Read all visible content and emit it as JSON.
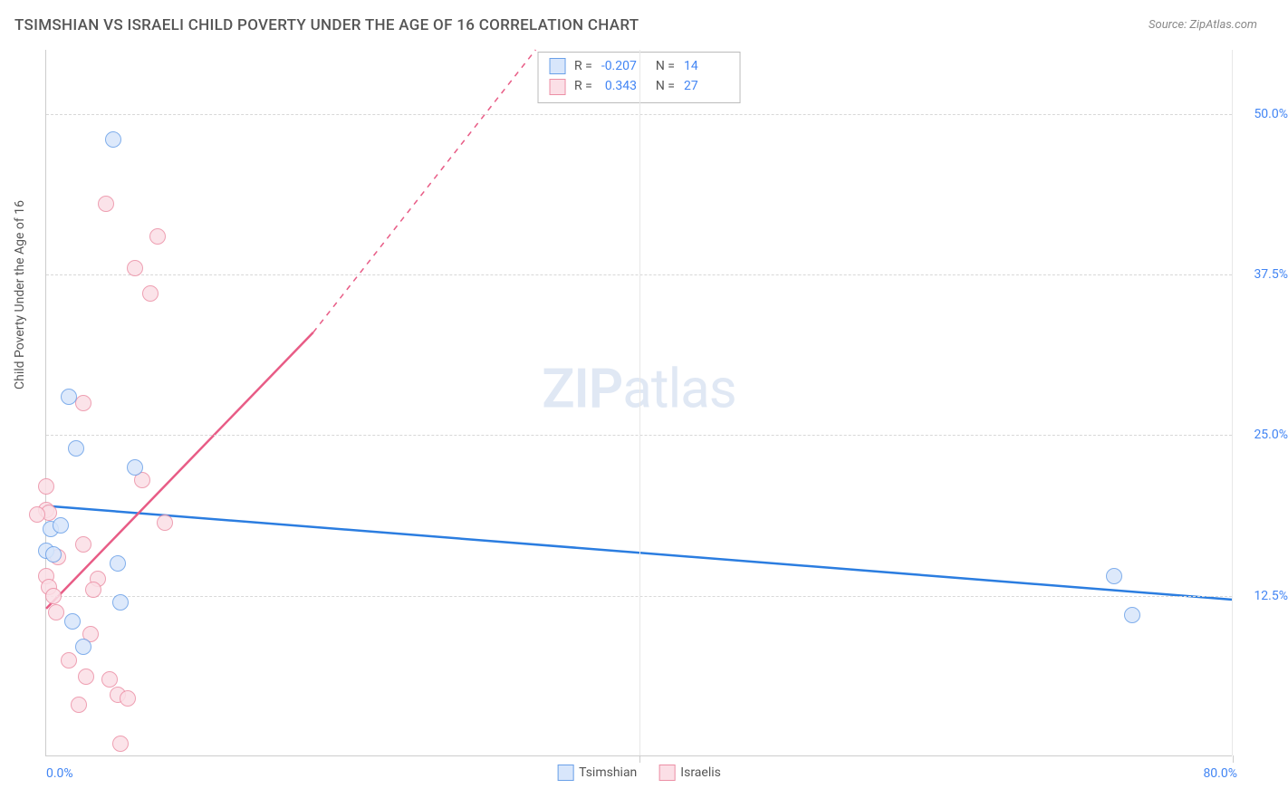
{
  "title": "TSIMSHIAN VS ISRAELI CHILD POVERTY UNDER THE AGE OF 16 CORRELATION CHART",
  "source_label": "Source: ZipAtlas.com",
  "y_axis_label": "Child Poverty Under the Age of 16",
  "watermark_a": "ZIP",
  "watermark_b": "atlas",
  "chart": {
    "type": "scatter",
    "xlim": [
      0,
      80
    ],
    "ylim": [
      0,
      55
    ],
    "x_min_label": "0.0%",
    "x_max_label": "80.0%",
    "y_ticks": [
      12.5,
      25.0,
      37.5,
      50.0
    ],
    "y_tick_labels": [
      "12.5%",
      "25.0%",
      "37.5%",
      "50.0%"
    ],
    "x_ticks": [
      40,
      80
    ],
    "grid_color": "#d8d8d8",
    "background": "#ffffff",
    "axis_color": "#cccccc",
    "tick_label_color": "#4285f4",
    "tick_label_fontsize": 14,
    "point_radius": 9,
    "point_stroke_width": 1.5,
    "series": {
      "tsimshian": {
        "label": "Tsimshian",
        "fill": "#d8e6fb",
        "stroke": "#6aa0e8",
        "line_color": "#2b7de0",
        "line_width": 2.5,
        "trendline": {
          "x1": 0,
          "y1": 19.5,
          "x2": 80,
          "y2": 12.2
        },
        "stats_R": "-0.207",
        "stats_N": "14",
        "points": [
          [
            4.5,
            48.0
          ],
          [
            1.5,
            28.0
          ],
          [
            2.0,
            24.0
          ],
          [
            0.3,
            17.7
          ],
          [
            1.0,
            18.0
          ],
          [
            6.0,
            22.5
          ],
          [
            0.0,
            16.0
          ],
          [
            0.5,
            15.7
          ],
          [
            4.8,
            15.0
          ],
          [
            5.0,
            12.0
          ],
          [
            1.8,
            10.5
          ],
          [
            2.5,
            8.5
          ],
          [
            72.0,
            14.0
          ],
          [
            73.2,
            11.0
          ]
        ]
      },
      "israelis": {
        "label": "Israelis",
        "fill": "#fbdfe6",
        "stroke": "#ec8fa5",
        "line_color": "#e85c86",
        "line_width": 2.5,
        "trendline_solid": {
          "x1": 0,
          "y1": 11.5,
          "x2": 18.0,
          "y2": 33.0
        },
        "trendline_dashed": {
          "x1": 18.0,
          "y1": 33.0,
          "x2": 33.0,
          "y2": 55.0
        },
        "stats_R": "0.343",
        "stats_N": "27",
        "points": [
          [
            4.0,
            43.0
          ],
          [
            7.5,
            40.5
          ],
          [
            6.0,
            38.0
          ],
          [
            7.0,
            36.0
          ],
          [
            2.5,
            27.5
          ],
          [
            0.0,
            21.0
          ],
          [
            6.5,
            21.5
          ],
          [
            0.0,
            19.2
          ],
          [
            0.2,
            19.0
          ],
          [
            8.0,
            18.2
          ],
          [
            -0.6,
            18.8
          ],
          [
            2.5,
            16.5
          ],
          [
            0.8,
            15.5
          ],
          [
            0.0,
            14.0
          ],
          [
            3.5,
            13.8
          ],
          [
            0.2,
            13.2
          ],
          [
            3.2,
            13.0
          ],
          [
            0.7,
            11.2
          ],
          [
            3.0,
            9.5
          ],
          [
            1.5,
            7.5
          ],
          [
            4.3,
            6.0
          ],
          [
            2.7,
            6.2
          ],
          [
            4.8,
            4.8
          ],
          [
            5.5,
            4.5
          ],
          [
            2.2,
            4.0
          ],
          [
            5.0,
            1.0
          ],
          [
            0.5,
            12.5
          ]
        ]
      }
    },
    "legend_swatch_size": 18,
    "stats_box": {
      "R_label": "R =",
      "N_label": "N ="
    }
  }
}
